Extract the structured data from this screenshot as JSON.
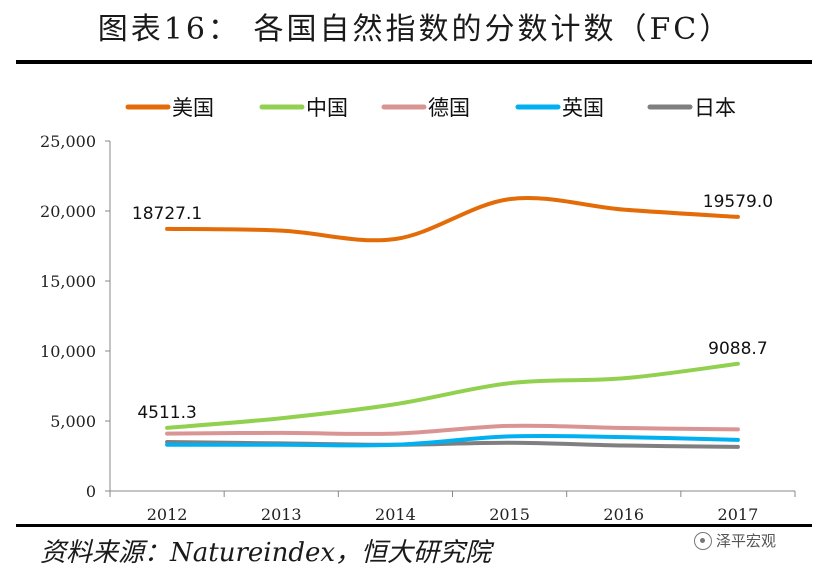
{
  "title": "图表16： 各国自然指数的分数计数（FC）",
  "source": "资料来源：Natureindex，恒大研究院",
  "watermark": "泽平宏观",
  "chart_data": {
    "type": "line",
    "x": [
      "2012",
      "2013",
      "2014",
      "2015",
      "2016",
      "2017"
    ],
    "ylim": [
      0,
      25000
    ],
    "yticks": [
      0,
      5000,
      10000,
      15000,
      20000,
      25000
    ],
    "ytick_labels": [
      "0",
      "5,000",
      "10,000",
      "15,000",
      "20,000",
      "25,000"
    ],
    "legend_position": "top",
    "grid": false,
    "series": [
      {
        "name": "美国",
        "color": "#E36C09",
        "values": [
          18727.1,
          18600,
          18000,
          20850,
          20100,
          19579.0
        ]
      },
      {
        "name": "中国",
        "color": "#92D050",
        "values": [
          4511.3,
          5200,
          6200,
          7700,
          8050,
          9088.7
        ]
      },
      {
        "name": "德国",
        "color": "#D99594",
        "values": [
          4100,
          4150,
          4100,
          4650,
          4500,
          4400
        ]
      },
      {
        "name": "英国",
        "color": "#00B0F0",
        "values": [
          3300,
          3300,
          3300,
          3900,
          3850,
          3650
        ]
      },
      {
        "name": "日本",
        "color": "#7F7F7F",
        "values": [
          3500,
          3400,
          3300,
          3450,
          3250,
          3150
        ]
      }
    ],
    "data_labels": [
      {
        "series": 0,
        "index": 0,
        "text": "18727.1"
      },
      {
        "series": 0,
        "index": 5,
        "text": "19579.0"
      },
      {
        "series": 1,
        "index": 0,
        "text": "4511.3"
      },
      {
        "series": 1,
        "index": 5,
        "text": "9088.7"
      }
    ]
  }
}
